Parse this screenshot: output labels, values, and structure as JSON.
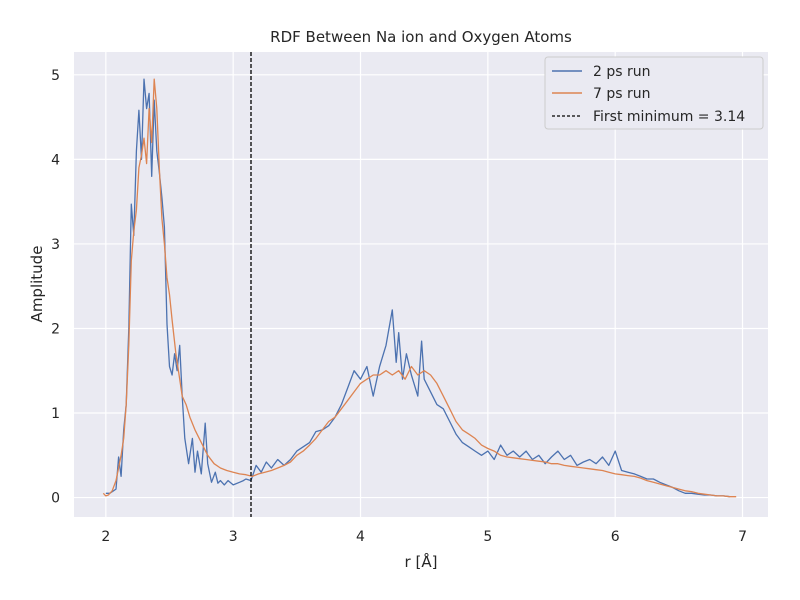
{
  "chart_data": {
    "type": "line",
    "title": "RDF Between Na ion and Oxygen Atoms",
    "xlabel": "r [Å]",
    "ylabel": "Amplitude",
    "xlim": [
      1.75,
      7.2
    ],
    "ylim": [
      -0.23,
      5.27
    ],
    "xticks": [
      2,
      3,
      4,
      5,
      6,
      7
    ],
    "yticks": [
      0,
      1,
      2,
      3,
      4,
      5
    ],
    "grid": true,
    "legend_position": "top-right",
    "series": [
      {
        "name": "2 ps run",
        "color": "#4c72b0",
        "x": [
          2.0,
          2.03,
          2.06,
          2.08,
          2.1,
          2.12,
          2.14,
          2.16,
          2.18,
          2.2,
          2.22,
          2.24,
          2.26,
          2.28,
          2.3,
          2.32,
          2.34,
          2.36,
          2.38,
          2.4,
          2.42,
          2.44,
          2.46,
          2.48,
          2.5,
          2.52,
          2.54,
          2.56,
          2.58,
          2.6,
          2.62,
          2.65,
          2.68,
          2.7,
          2.72,
          2.75,
          2.78,
          2.8,
          2.83,
          2.86,
          2.88,
          2.9,
          2.93,
          2.96,
          3.0,
          3.05,
          3.08,
          3.1,
          3.14,
          3.18,
          3.22,
          3.26,
          3.3,
          3.35,
          3.4,
          3.45,
          3.5,
          3.55,
          3.6,
          3.65,
          3.7,
          3.75,
          3.8,
          3.85,
          3.9,
          3.95,
          4.0,
          4.05,
          4.1,
          4.15,
          4.2,
          4.25,
          4.28,
          4.3,
          4.33,
          4.36,
          4.4,
          4.45,
          4.48,
          4.5,
          4.55,
          4.6,
          4.65,
          4.7,
          4.75,
          4.8,
          4.85,
          4.9,
          4.95,
          5.0,
          5.05,
          5.1,
          5.15,
          5.2,
          5.25,
          5.3,
          5.35,
          5.4,
          5.45,
          5.5,
          5.55,
          5.6,
          5.65,
          5.7,
          5.75,
          5.8,
          5.85,
          5.9,
          5.95,
          6.0,
          6.05,
          6.1,
          6.15,
          6.2,
          6.25,
          6.3,
          6.35,
          6.4,
          6.45,
          6.5,
          6.55,
          6.6,
          6.65,
          6.7,
          6.75,
          6.8,
          6.85,
          6.9
        ],
        "y": [
          0.05,
          0.05,
          0.08,
          0.1,
          0.48,
          0.25,
          0.8,
          1.1,
          2.0,
          3.47,
          3.1,
          4.1,
          4.58,
          4.0,
          4.95,
          4.6,
          4.78,
          3.8,
          4.7,
          4.1,
          3.85,
          3.55,
          3.2,
          2.05,
          1.55,
          1.45,
          1.7,
          1.5,
          1.8,
          1.2,
          0.7,
          0.4,
          0.7,
          0.3,
          0.55,
          0.28,
          0.88,
          0.4,
          0.18,
          0.3,
          0.17,
          0.2,
          0.15,
          0.2,
          0.15,
          0.18,
          0.2,
          0.22,
          0.2,
          0.38,
          0.3,
          0.42,
          0.35,
          0.45,
          0.38,
          0.45,
          0.55,
          0.6,
          0.65,
          0.78,
          0.8,
          0.85,
          0.95,
          1.1,
          1.3,
          1.5,
          1.4,
          1.55,
          1.2,
          1.55,
          1.8,
          2.22,
          1.6,
          1.95,
          1.4,
          1.7,
          1.45,
          1.2,
          1.85,
          1.4,
          1.25,
          1.1,
          1.05,
          0.9,
          0.75,
          0.65,
          0.6,
          0.55,
          0.5,
          0.55,
          0.45,
          0.62,
          0.5,
          0.55,
          0.48,
          0.55,
          0.45,
          0.5,
          0.4,
          0.48,
          0.55,
          0.45,
          0.5,
          0.38,
          0.42,
          0.45,
          0.4,
          0.48,
          0.38,
          0.55,
          0.32,
          0.3,
          0.28,
          0.25,
          0.22,
          0.22,
          0.18,
          0.15,
          0.12,
          0.08,
          0.05,
          0.05,
          0.04,
          0.03,
          0.03,
          0.02,
          0.02,
          0.01
        ]
      },
      {
        "name": "7 ps run",
        "color": "#dd8452",
        "x": [
          1.98,
          2.0,
          2.02,
          2.05,
          2.08,
          2.1,
          2.12,
          2.14,
          2.16,
          2.18,
          2.2,
          2.22,
          2.24,
          2.26,
          2.28,
          2.3,
          2.32,
          2.34,
          2.36,
          2.38,
          2.4,
          2.42,
          2.44,
          2.46,
          2.48,
          2.5,
          2.52,
          2.55,
          2.58,
          2.6,
          2.63,
          2.66,
          2.7,
          2.75,
          2.8,
          2.85,
          2.9,
          2.95,
          3.0,
          3.05,
          3.1,
          3.15,
          3.2,
          3.25,
          3.3,
          3.35,
          3.4,
          3.45,
          3.5,
          3.55,
          3.6,
          3.65,
          3.7,
          3.75,
          3.8,
          3.85,
          3.9,
          3.95,
          4.0,
          4.05,
          4.1,
          4.15,
          4.2,
          4.25,
          4.3,
          4.35,
          4.4,
          4.45,
          4.5,
          4.55,
          4.6,
          4.65,
          4.7,
          4.75,
          4.8,
          4.85,
          4.9,
          4.95,
          5.0,
          5.05,
          5.1,
          5.15,
          5.2,
          5.25,
          5.3,
          5.35,
          5.4,
          5.45,
          5.5,
          5.55,
          5.6,
          5.65,
          5.7,
          5.75,
          5.8,
          5.85,
          5.9,
          5.95,
          6.0,
          6.05,
          6.1,
          6.15,
          6.2,
          6.25,
          6.3,
          6.35,
          6.4,
          6.45,
          6.5,
          6.55,
          6.6,
          6.65,
          6.7,
          6.75,
          6.8,
          6.85,
          6.9,
          6.95
        ],
        "y": [
          0.05,
          0.02,
          0.03,
          0.08,
          0.2,
          0.35,
          0.5,
          0.7,
          1.1,
          1.8,
          2.8,
          3.15,
          3.4,
          3.9,
          4.05,
          4.25,
          3.95,
          4.6,
          4.2,
          4.95,
          4.6,
          3.9,
          3.3,
          3.0,
          2.6,
          2.4,
          2.1,
          1.7,
          1.4,
          1.2,
          1.1,
          0.95,
          0.8,
          0.65,
          0.5,
          0.4,
          0.35,
          0.32,
          0.3,
          0.28,
          0.27,
          0.25,
          0.28,
          0.3,
          0.32,
          0.35,
          0.38,
          0.42,
          0.5,
          0.55,
          0.62,
          0.7,
          0.8,
          0.9,
          0.95,
          1.05,
          1.15,
          1.25,
          1.35,
          1.4,
          1.45,
          1.45,
          1.5,
          1.45,
          1.5,
          1.4,
          1.55,
          1.45,
          1.5,
          1.45,
          1.35,
          1.2,
          1.05,
          0.9,
          0.8,
          0.75,
          0.7,
          0.62,
          0.58,
          0.55,
          0.5,
          0.48,
          0.47,
          0.46,
          0.45,
          0.44,
          0.43,
          0.42,
          0.4,
          0.4,
          0.38,
          0.37,
          0.36,
          0.35,
          0.34,
          0.33,
          0.32,
          0.3,
          0.28,
          0.27,
          0.26,
          0.25,
          0.23,
          0.2,
          0.18,
          0.16,
          0.14,
          0.12,
          0.1,
          0.08,
          0.07,
          0.05,
          0.04,
          0.03,
          0.02,
          0.02,
          0.01,
          0.01
        ]
      }
    ],
    "vline": {
      "x": 3.14,
      "label": "First minimum = 3.14",
      "color": "#000000"
    }
  }
}
